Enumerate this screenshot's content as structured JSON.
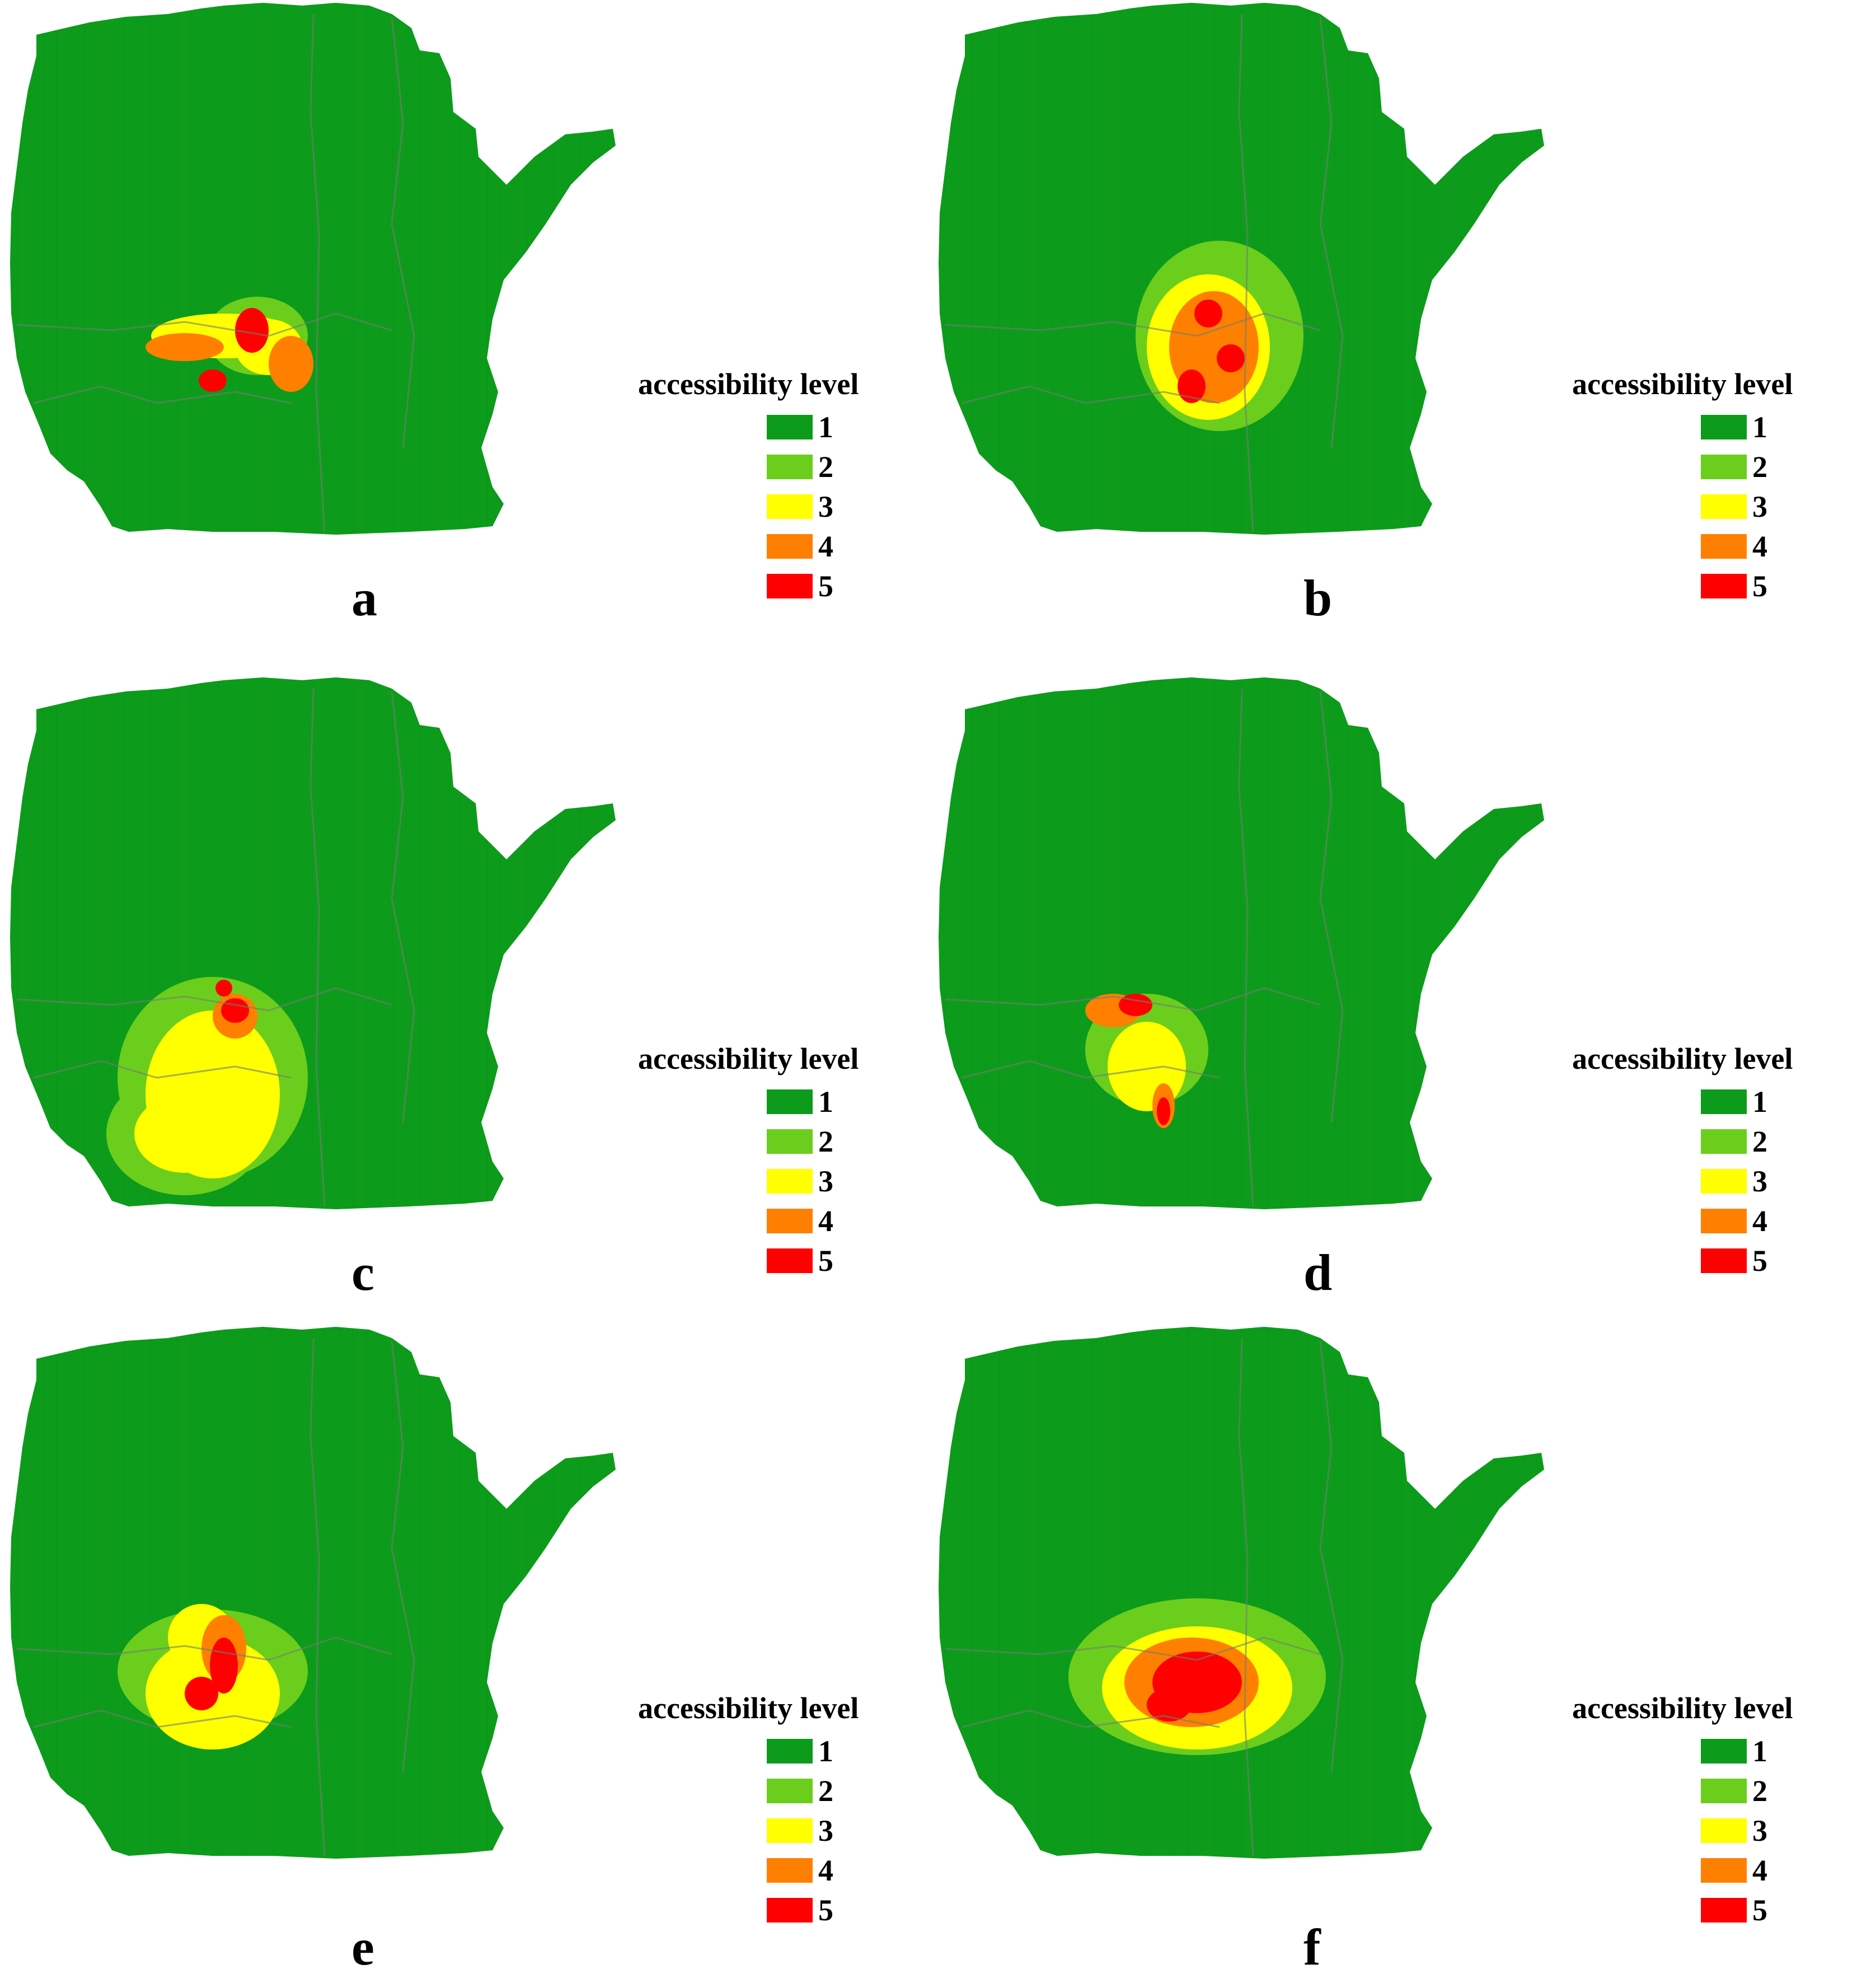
{
  "legend": {
    "title": "accessibility level",
    "levels": [
      {
        "label": "1",
        "color": "#0d9b1b"
      },
      {
        "label": "2",
        "color": "#6bce1c"
      },
      {
        "label": "3",
        "color": "#ffff00"
      },
      {
        "label": "4",
        "color": "#ff8000"
      },
      {
        "label": "5",
        "color": "#ff0000"
      }
    ]
  },
  "panels": [
    {
      "letter": "a"
    },
    {
      "letter": "b"
    },
    {
      "letter": "c"
    },
    {
      "letter": "d"
    },
    {
      "letter": "e"
    },
    {
      "letter": "f"
    }
  ]
}
